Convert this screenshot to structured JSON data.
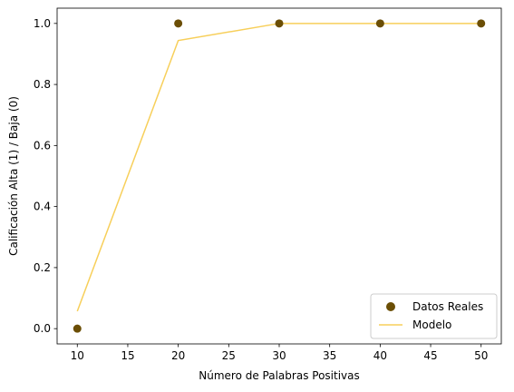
{
  "chart_data": {
    "type": "scatter",
    "xlabel": "Número de Palabras Positivas",
    "ylabel": "Calificación Alta (1) / Baja (0)",
    "xlim": [
      8,
      52
    ],
    "ylim": [
      -0.05,
      1.05
    ],
    "x_ticks": [
      10,
      15,
      20,
      25,
      30,
      35,
      40,
      45,
      50
    ],
    "x_tick_labels": [
      "10",
      "15",
      "20",
      "25",
      "30",
      "35",
      "40",
      "45",
      "50"
    ],
    "y_ticks": [
      0.0,
      0.2,
      0.4,
      0.6,
      0.8,
      1.0
    ],
    "y_tick_labels": [
      "0.0",
      "0.2",
      "0.4",
      "0.6",
      "0.8",
      "1.0"
    ],
    "grid": false,
    "legend_position": "lower-right",
    "series": [
      {
        "name": "Datos Reales",
        "kind": "scatter",
        "color": "#6b4e05",
        "x": [
          10,
          20,
          30,
          40,
          50
        ],
        "y": [
          0,
          1,
          1,
          1,
          1
        ]
      },
      {
        "name": "Modelo",
        "kind": "line",
        "color": "#f7cf5a",
        "x": [
          10,
          20,
          30,
          40,
          50
        ],
        "y": [
          0.057,
          0.944,
          1.0,
          1.0,
          1.0
        ]
      }
    ]
  }
}
